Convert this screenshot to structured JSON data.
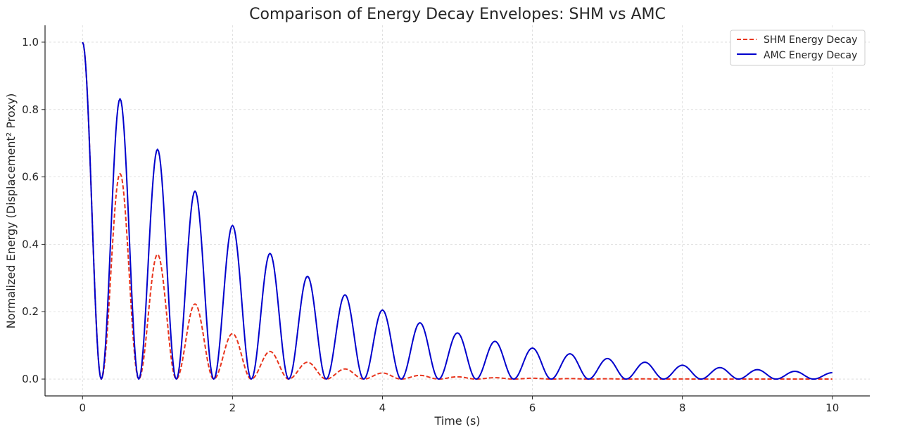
{
  "chart_data": {
    "type": "line",
    "title": "Comparison of Energy Decay Envelopes: SHM vs AMC",
    "xlabel": "Time (s)",
    "ylabel": "Normalized Energy (Displacement² Proxy)",
    "xlim": [
      -0.5,
      10.5
    ],
    "ylim": [
      -0.05,
      1.05
    ],
    "xticks": [
      "0",
      "2",
      "4",
      "6",
      "8",
      "10"
    ],
    "yticks": [
      "0.0",
      "0.2",
      "0.4",
      "0.6",
      "0.8",
      "1.0"
    ],
    "grid": true,
    "legend_position": "top-right",
    "series": [
      {
        "name": "SHM Energy Decay",
        "color": "#e8351d",
        "style": "dashed",
        "peaks_t": [
          0,
          0.5,
          1.0,
          1.5,
          2.0,
          2.5,
          3.0,
          3.5,
          4.0,
          4.5,
          5.0,
          5.5,
          6.0,
          6.5,
          7.0,
          7.5,
          8.0,
          8.5,
          9.0,
          9.5,
          10.0
        ],
        "peaks": [
          1.0,
          0.61,
          0.37,
          0.223,
          0.135,
          0.082,
          0.05,
          0.03,
          0.018,
          0.011,
          0.0067,
          0.0041,
          0.0025,
          0.0015,
          0.0009,
          0.00055,
          0.00034,
          0.0002,
          0.00012,
          7e-05,
          5e-05
        ],
        "troughs_t": [
          0.25,
          0.75,
          1.25,
          1.75,
          2.25,
          2.75,
          3.25,
          3.75,
          4.25,
          4.75,
          5.25,
          5.75,
          6.25,
          6.75,
          7.25,
          7.75,
          8.25,
          8.75,
          9.25,
          9.75
        ],
        "trough_value": 0.0
      },
      {
        "name": "AMC Energy Decay",
        "color": "#0000cc",
        "style": "solid",
        "peaks_t": [
          0,
          0.5,
          1.0,
          1.5,
          2.0,
          2.5,
          3.0,
          3.5,
          4.0,
          4.5,
          5.0,
          5.5,
          6.0,
          6.5,
          7.0,
          7.5,
          8.0,
          8.5,
          9.0,
          9.5,
          10.0
        ],
        "peaks": [
          1.0,
          0.832,
          0.682,
          0.558,
          0.456,
          0.373,
          0.305,
          0.25,
          0.205,
          0.167,
          0.137,
          0.112,
          0.092,
          0.075,
          0.061,
          0.05,
          0.041,
          0.034,
          0.028,
          0.023,
          0.019
        ],
        "troughs_t": [
          0.25,
          0.75,
          1.25,
          1.75,
          2.25,
          2.75,
          3.25,
          3.75,
          4.25,
          4.75,
          5.25,
          5.75,
          6.25,
          6.75,
          7.25,
          7.75,
          8.25,
          8.75,
          9.25,
          9.75
        ],
        "trough_value": 0.0
      }
    ]
  }
}
